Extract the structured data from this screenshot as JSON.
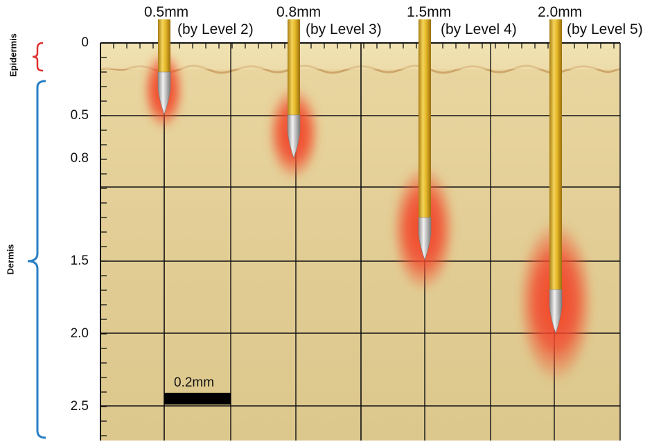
{
  "layers": {
    "epidermis": {
      "label": "Epidermis",
      "color": "#e0302e"
    },
    "dermis": {
      "label": "Dermis",
      "color": "#2a7fc4"
    }
  },
  "depth_axis": {
    "ticks": [
      "0",
      "0.5",
      "0.8",
      "1.5",
      "2.0",
      "2.5"
    ]
  },
  "needles": [
    {
      "length": "0.5mm",
      "level": "(by Level 2)"
    },
    {
      "length": "0.8mm",
      "level": "(by Level 3)"
    },
    {
      "length": "1.5mm",
      "level": "(by Level 4)"
    },
    {
      "length": "2.0mm",
      "level": "(by Level 5)"
    }
  ],
  "scale_bar": {
    "label": "0.2mm"
  },
  "colors": {
    "skin": "#e6d29a",
    "skin_dark": "#c9b27a",
    "needle_gold": "#e2b928",
    "needle_tip": "#c8c8c8",
    "glow": "#f0402a"
  }
}
